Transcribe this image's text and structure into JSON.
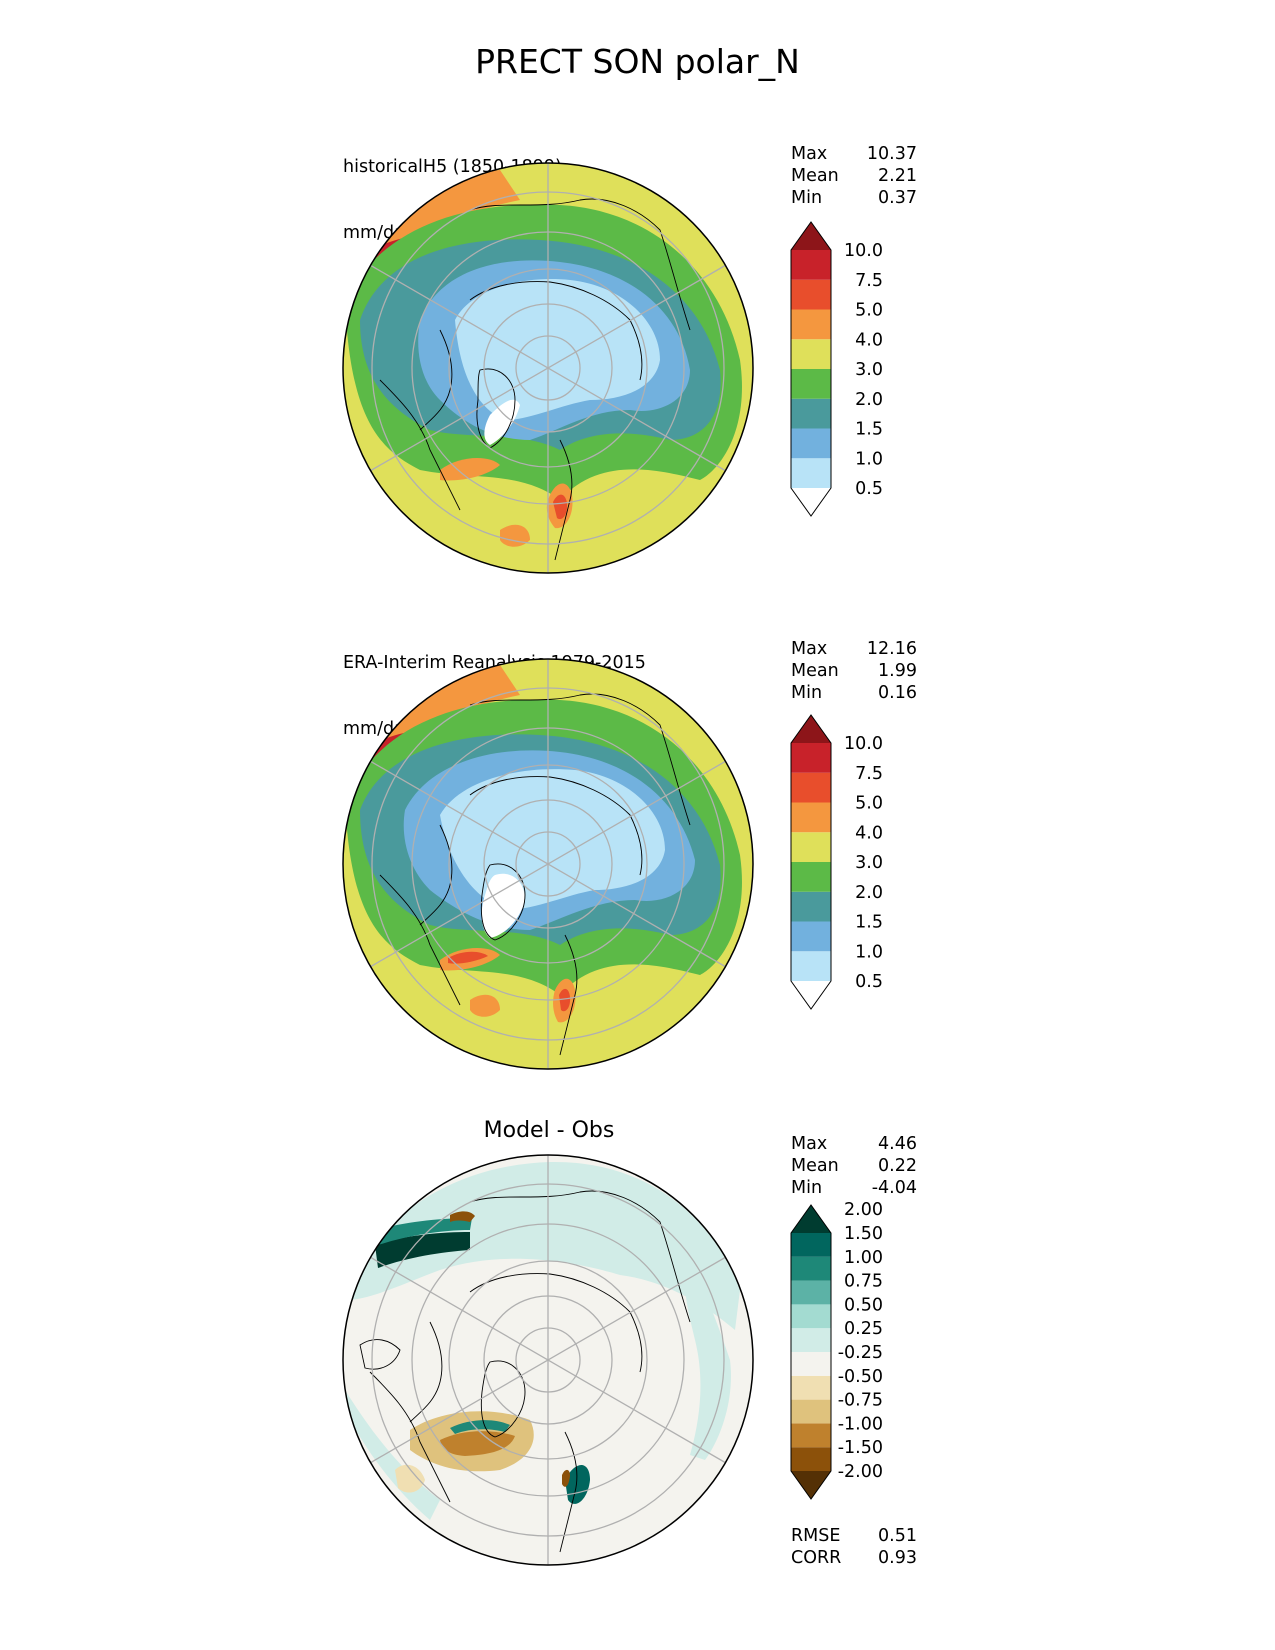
{
  "figure": {
    "title": "PRECT SON polar_N"
  },
  "colors": {
    "precip_levels": [
      "#ffffff",
      "#b8e3f7",
      "#72b1de",
      "#4a9a9c",
      "#5cba47",
      "#dfe05a",
      "#f4973f",
      "#e84e2c",
      "#c8222a",
      "#8d1519"
    ],
    "diff_levels": [
      "#543005",
      "#8c510a",
      "#bf812d",
      "#dfc27d",
      "#f0dfb2",
      "#f4f3ee",
      "#d1ece7",
      "#a3dbd1",
      "#5cb2a6",
      "#1e8878",
      "#01665e",
      "#003c30"
    ]
  },
  "chart_data": [
    {
      "type": "heatmap",
      "projection": "north polar stereographic",
      "label_line1": "historicalH5 (1850-1899)",
      "label_line2": "mm/day",
      "stats": {
        "max_label": "Max",
        "max": "10.37",
        "mean_label": "Mean",
        "mean": "2.21",
        "min_label": "Min",
        "min": "0.37"
      },
      "colorbar": {
        "levels": [
          "0.5",
          "1.0",
          "1.5",
          "2.0",
          "3.0",
          "4.0",
          "5.0",
          "7.5",
          "10.0"
        ],
        "extend": "both"
      }
    },
    {
      "type": "heatmap",
      "projection": "north polar stereographic",
      "label_line1": "ERA-Interim Reanalysis 1979-2015",
      "label_line2": "mm/day",
      "stats": {
        "max_label": "Max",
        "max": "12.16",
        "mean_label": "Mean",
        "mean": "1.99",
        "min_label": "Min",
        "min": "0.16"
      },
      "colorbar": {
        "levels": [
          "0.5",
          "1.0",
          "1.5",
          "2.0",
          "3.0",
          "4.0",
          "5.0",
          "7.5",
          "10.0"
        ],
        "extend": "both"
      }
    },
    {
      "type": "heatmap",
      "projection": "north polar stereographic",
      "title": "Model - Obs",
      "stats": {
        "max_label": "Max",
        "max": "4.46",
        "mean_label": "Mean",
        "mean": "0.22",
        "min_label": "Min",
        "min": "-4.04"
      },
      "colorbar": {
        "levels": [
          "-2.00",
          "-1.50",
          "-1.00",
          "-0.75",
          "-0.50",
          "-0.25",
          "0.25",
          "0.50",
          "0.75",
          "1.00",
          "1.50",
          "2.00"
        ],
        "extend": "both"
      },
      "metrics": {
        "rmse_label": "RMSE",
        "rmse": "0.51",
        "corr_label": "CORR",
        "corr": "0.93"
      }
    }
  ]
}
